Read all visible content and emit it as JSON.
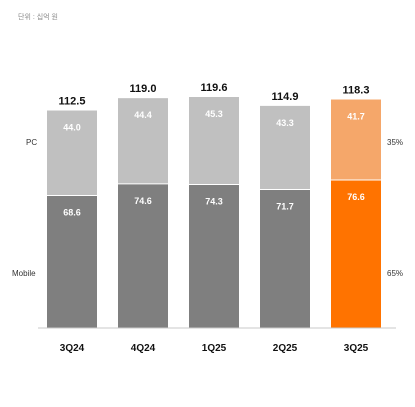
{
  "unit_text": "단위 : 십억 원",
  "chart_data": {
    "type": "bar",
    "stacked": true,
    "categories": [
      "3Q24",
      "4Q24",
      "1Q25",
      "2Q25",
      "3Q25"
    ],
    "totals": [
      "112.5",
      "119.0",
      "119.6",
      "114.9",
      "118.3"
    ],
    "series": [
      {
        "name": "Mobile",
        "values": [
          68.6,
          74.6,
          74.3,
          71.7,
          76.6
        ],
        "labels": [
          "68.6",
          "74.6",
          "74.3",
          "71.7",
          "76.6"
        ]
      },
      {
        "name": "PC",
        "values": [
          44.0,
          44.4,
          45.3,
          43.3,
          41.7
        ],
        "labels": [
          "44.0",
          "44.4",
          "45.3",
          "43.3",
          "41.7"
        ]
      }
    ],
    "share_labels": {
      "PC": "35%",
      "Mobile": "65%"
    },
    "highlight_category": "3Q25",
    "colors": {
      "mobile": "#7f7f7f",
      "pc": "#c0c0c0",
      "mobile_highlight": "#ff7300",
      "pc_highlight": "#f5a76a",
      "baseline": "#c8c8c8"
    }
  }
}
